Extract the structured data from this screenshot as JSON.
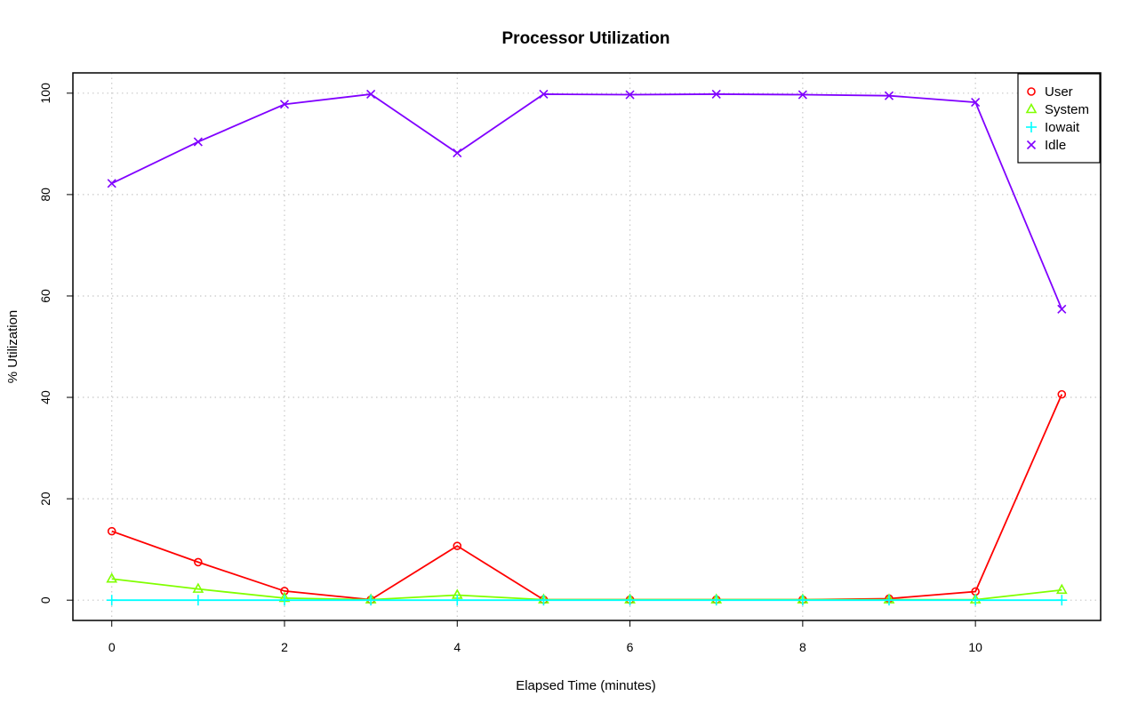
{
  "chart_data": {
    "type": "line",
    "title": "Processor Utilization",
    "xlabel": "Elapsed Time (minutes)",
    "ylabel": "% Utilization",
    "xlim": [
      -0.45,
      11.45
    ],
    "ylim": [
      -4,
      104
    ],
    "xticks": [
      0,
      2,
      4,
      6,
      8,
      10
    ],
    "yticks": [
      0,
      20,
      40,
      60,
      80,
      100
    ],
    "grid": true,
    "legend_position": "top-right",
    "x": [
      0,
      1,
      2,
      3,
      4,
      5,
      6,
      7,
      8,
      9,
      10,
      11
    ],
    "series": [
      {
        "name": "User",
        "color": "#ff0000",
        "marker": "circle",
        "values": [
          13.6,
          7.5,
          1.8,
          0.1,
          10.7,
          0.1,
          0.1,
          0.1,
          0.1,
          0.3,
          1.7,
          40.6
        ]
      },
      {
        "name": "System",
        "color": "#80ff00",
        "marker": "triangle",
        "values": [
          4.2,
          2.2,
          0.4,
          0.1,
          1.0,
          0.1,
          0.1,
          0.1,
          0.1,
          0.1,
          0.1,
          2.0
        ]
      },
      {
        "name": "Iowait",
        "color": "#00ffff",
        "marker": "plus",
        "values": [
          0,
          0,
          0,
          0,
          0,
          0,
          0,
          0,
          0,
          0,
          0,
          0
        ]
      },
      {
        "name": "Idle",
        "color": "#8000ff",
        "marker": "cross",
        "values": [
          82.2,
          90.4,
          97.8,
          99.8,
          88.2,
          99.8,
          99.7,
          99.8,
          99.7,
          99.5,
          98.2,
          57.4
        ]
      }
    ]
  }
}
